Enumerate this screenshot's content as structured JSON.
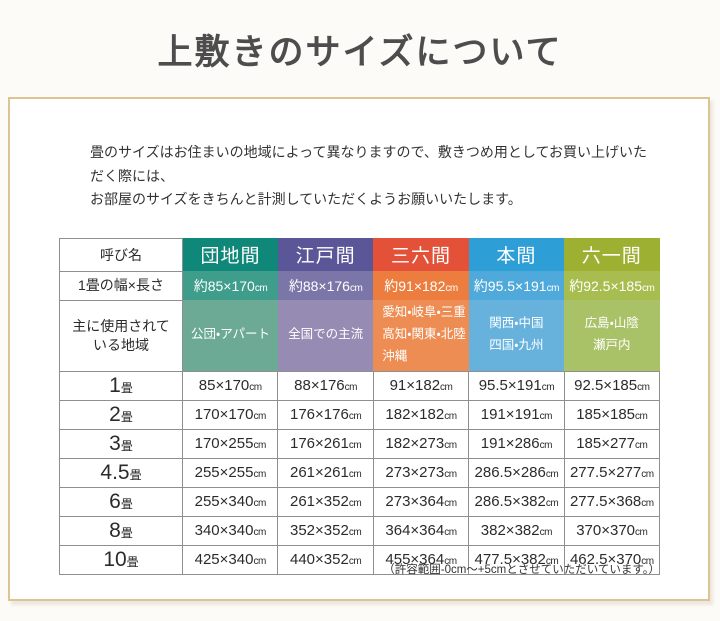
{
  "page": {
    "title": "上敷きのサイズについて"
  },
  "intro": {
    "line1": "畳のサイズはお住まいの地域によって異なりますので、敷きつめ用としてお買い上げいただく際には、",
    "line2": "お部屋のサイズをきちんと計測していただくようお願いいたします。"
  },
  "table": {
    "corner_label": "呼び名",
    "spec_label": "1畳の幅×長さ",
    "region_label_line1": "主に使用されて",
    "region_label_line2": "いる地域",
    "unit": "cm",
    "tatami_unit": "畳",
    "columns": [
      {
        "name": "団地間",
        "spec": "約85×170",
        "region_lines": [
          "公団・アパート"
        ]
      },
      {
        "name": "江戸間",
        "spec": "約88×176",
        "region_lines": [
          "全国での主流"
        ]
      },
      {
        "name": "三六間",
        "spec": "約91×182",
        "region_lines": [
          "愛知・岐阜・三重",
          "高知・関東・北陸",
          "沖縄"
        ]
      },
      {
        "name": "本間",
        "spec": "約95.5×191",
        "region_lines": [
          "関西・中国",
          "四国・九州"
        ]
      },
      {
        "name": "六一間",
        "spec": "約92.5×185",
        "region_lines": [
          "広島・山陰",
          "瀬戸内"
        ]
      }
    ],
    "rows": [
      {
        "label": "1",
        "sizes": [
          "85×170",
          "88×176",
          "91×182",
          "95.5×191",
          "92.5×185"
        ]
      },
      {
        "label": "2",
        "sizes": [
          "170×170",
          "176×176",
          "182×182",
          "191×191",
          "185×185"
        ]
      },
      {
        "label": "3",
        "sizes": [
          "170×255",
          "176×261",
          "182×273",
          "191×286",
          "185×277"
        ]
      },
      {
        "label": "4.5",
        "sizes": [
          "255×255",
          "261×261",
          "273×273",
          "286.5×286",
          "277.5×277"
        ]
      },
      {
        "label": "6",
        "sizes": [
          "255×340",
          "261×352",
          "273×364",
          "286.5×382",
          "277.5×368"
        ]
      },
      {
        "label": "8",
        "sizes": [
          "340×340",
          "352×352",
          "364×364",
          "382×382",
          "370×370"
        ]
      },
      {
        "label": "10",
        "sizes": [
          "425×340",
          "440×352",
          "455×364",
          "477.5×382",
          "462.5×370"
        ]
      }
    ]
  },
  "footnote": "（許容範囲-0cm～+5cmとさせていただいています。）",
  "colors": {
    "title": "#4d4d4d",
    "box_border": "#dcc493",
    "danchi_header": "#0f8779",
    "danchi_spec": "#3f9d8b",
    "danchi_region": "#6caa95",
    "edo_header": "#5b5697",
    "edo_spec": "#7b76a8",
    "edo_region": "#968bb2",
    "sanroku_header": "#e25138",
    "sanroku_spec": "#ec7d3e",
    "sanroku_region": "#ed8d53",
    "hon_header": "#2d9ed6",
    "hon_spec": "#4fa9da",
    "hon_region": "#66b2dd",
    "rokuichi_header": "#9db032",
    "rokuichi_spec": "#a8bd4f",
    "rokuichi_region": "#a9c268"
  }
}
